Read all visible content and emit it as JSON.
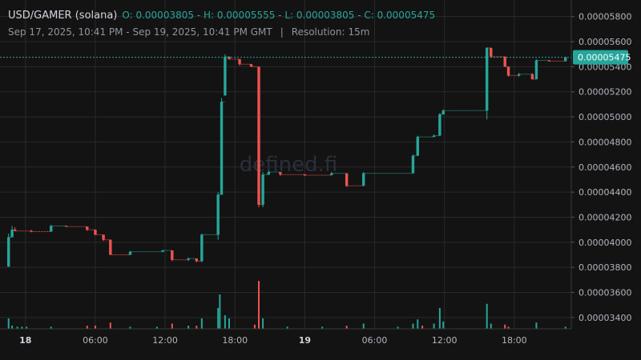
{
  "header": {
    "symbol": "USD/GAMER (solana)",
    "ohlc": "O: 0.00003805 - H: 0.00005555 - L: 0.00003805 - C: 0.00005475",
    "range": "Sep 17, 2025, 10:41 PM - Sep 19, 2025, 10:41 PM GMT",
    "separator": "|",
    "resolution_label": "Resolution:",
    "resolution": "15m"
  },
  "watermark": "defined.fi",
  "colors": {
    "background": "#131313",
    "grid": "#2a2a2a",
    "up": "#26a69a",
    "down": "#ef5350",
    "price_line": "#26a69a",
    "watermark": "#2a2f3d"
  },
  "chart_data": {
    "type": "candlestick",
    "y_axis_position": "right",
    "ylim": [
      3.31e-05,
      5.9e-05
    ],
    "y_ticks": [
      "0.00005800",
      "0.00005600",
      "0.00005400",
      "0.00005200",
      "0.00005000",
      "0.00004800",
      "0.00004600",
      "0.00004400",
      "0.00004200",
      "0.00004000",
      "0.00003800",
      "0.00003600",
      "0.00003400"
    ],
    "x_ticks": [
      {
        "t": 1.5,
        "label": "18",
        "major": true
      },
      {
        "t": 7.5,
        "label": "06:00",
        "major": false
      },
      {
        "t": 13.5,
        "label": "12:00",
        "major": false
      },
      {
        "t": 19.5,
        "label": "18:00",
        "major": false
      },
      {
        "t": 25.5,
        "label": "19",
        "major": true
      },
      {
        "t": 31.5,
        "label": "06:00",
        "major": false
      },
      {
        "t": 37.5,
        "label": "12:00",
        "major": false
      },
      {
        "t": 43.5,
        "label": "18:00",
        "major": false
      }
    ],
    "time_range_hours": [
      0,
      48.4
    ],
    "last_price": "0.00005475",
    "last_price_value": 5.475e-05,
    "candles": [
      {
        "t": 0.05,
        "o": 3.805e-05,
        "h": 4.07e-05,
        "l": 3.805e-05,
        "c": 4.04e-05
      },
      {
        "t": 0.35,
        "o": 4.04e-05,
        "h": 4.13e-05,
        "l": 4.04e-05,
        "c": 4.1e-05
      },
      {
        "t": 0.6,
        "o": 4.1e-05,
        "h": 4.12e-05,
        "l": 4.09e-05,
        "c": 4.09e-05
      },
      {
        "t": 2.0,
        "o": 4.09e-05,
        "h": 4.1e-05,
        "l": 4.08e-05,
        "c": 4.085e-05
      },
      {
        "t": 3.7,
        "o": 4.085e-05,
        "h": 4.14e-05,
        "l": 4.085e-05,
        "c": 4.13e-05
      },
      {
        "t": 5.0,
        "o": 4.13e-05,
        "h": 4.135e-05,
        "l": 4.125e-05,
        "c": 4.125e-05
      },
      {
        "t": 6.8,
        "o": 4.125e-05,
        "h": 4.125e-05,
        "l": 4.09e-05,
        "c": 4.1e-05
      },
      {
        "t": 7.5,
        "o": 4.1e-05,
        "h": 4.1e-05,
        "l": 4.06e-05,
        "c": 4.06e-05
      },
      {
        "t": 8.2,
        "o": 4.06e-05,
        "h": 4.06e-05,
        "l": 4.01e-05,
        "c": 4.02e-05
      },
      {
        "t": 8.8,
        "o": 4.02e-05,
        "h": 4.02e-05,
        "l": 3.9e-05,
        "c": 3.9e-05
      },
      {
        "t": 10.5,
        "o": 3.9e-05,
        "h": 3.93e-05,
        "l": 3.9e-05,
        "c": 3.925e-05
      },
      {
        "t": 13.3,
        "o": 3.925e-05,
        "h": 3.94e-05,
        "l": 3.92e-05,
        "c": 3.935e-05
      },
      {
        "t": 14.1,
        "o": 3.935e-05,
        "h": 3.935e-05,
        "l": 3.85e-05,
        "c": 3.86e-05
      },
      {
        "t": 15.5,
        "o": 3.86e-05,
        "h": 3.88e-05,
        "l": 3.85e-05,
        "c": 3.87e-05
      },
      {
        "t": 16.2,
        "o": 3.87e-05,
        "h": 3.87e-05,
        "l": 3.84e-05,
        "c": 3.85e-05
      },
      {
        "t": 16.65,
        "o": 3.85e-05,
        "h": 4.07e-05,
        "l": 3.84e-05,
        "c": 4.06e-05
      },
      {
        "t": 18.05,
        "o": 4.06e-05,
        "h": 4.4e-05,
        "l": 4.02e-05,
        "c": 4.38e-05
      },
      {
        "t": 18.35,
        "o": 4.38e-05,
        "h": 5.15e-05,
        "l": 4.38e-05,
        "c": 5.12e-05
      },
      {
        "t": 18.65,
        "o": 5.17e-05,
        "h": 5.5e-05,
        "l": 5.17e-05,
        "c": 5.48e-05
      },
      {
        "t": 19.0,
        "o": 5.48e-05,
        "h": 5.48e-05,
        "l": 5.46e-05,
        "c": 5.46e-05
      },
      {
        "t": 19.9,
        "o": 5.46e-05,
        "h": 5.46e-05,
        "l": 5.41e-05,
        "c": 5.42e-05
      },
      {
        "t": 20.9,
        "o": 5.42e-05,
        "h": 5.42e-05,
        "l": 5.4e-05,
        "c": 5.4e-05
      },
      {
        "t": 21.55,
        "o": 5.4e-05,
        "h": 5.4e-05,
        "l": 4.28e-05,
        "c": 4.3e-05
      },
      {
        "t": 21.9,
        "o": 4.3e-05,
        "h": 4.56e-05,
        "l": 4.28e-05,
        "c": 4.54e-05
      },
      {
        "t": 22.4,
        "o": 4.54e-05,
        "h": 4.57e-05,
        "l": 4.54e-05,
        "c": 4.56e-05
      },
      {
        "t": 23.4,
        "o": 4.56e-05,
        "h": 4.56e-05,
        "l": 4.53e-05,
        "c": 4.54e-05
      },
      {
        "t": 25.5,
        "o": 4.54e-05,
        "h": 4.545e-05,
        "l": 4.53e-05,
        "c": 4.535e-05
      },
      {
        "t": 27.8,
        "o": 4.535e-05,
        "h": 4.56e-05,
        "l": 4.535e-05,
        "c": 4.55e-05
      },
      {
        "t": 29.1,
        "o": 4.55e-05,
        "h": 4.55e-05,
        "l": 4.44e-05,
        "c": 4.45e-05
      },
      {
        "t": 30.55,
        "o": 4.45e-05,
        "h": 4.56e-05,
        "l": 4.45e-05,
        "c": 4.55e-05
      },
      {
        "t": 34.8,
        "o": 4.55e-05,
        "h": 4.7e-05,
        "l": 4.55e-05,
        "c": 4.69e-05
      },
      {
        "t": 35.2,
        "o": 4.69e-05,
        "h": 4.85e-05,
        "l": 4.69e-05,
        "c": 4.84e-05
      },
      {
        "t": 36.6,
        "o": 4.84e-05,
        "h": 4.86e-05,
        "l": 4.84e-05,
        "c": 4.85e-05
      },
      {
        "t": 37.1,
        "o": 4.85e-05,
        "h": 5.03e-05,
        "l": 4.85e-05,
        "c": 5.02e-05
      },
      {
        "t": 37.4,
        "o": 5.02e-05,
        "h": 5.06e-05,
        "l": 5.02e-05,
        "c": 5.05e-05
      },
      {
        "t": 41.15,
        "o": 5.05e-05,
        "h": 5.555e-05,
        "l": 4.98e-05,
        "c": 5.55e-05
      },
      {
        "t": 41.5,
        "o": 5.55e-05,
        "h": 5.55e-05,
        "l": 5.47e-05,
        "c": 5.48e-05
      },
      {
        "t": 42.7,
        "o": 5.48e-05,
        "h": 5.48e-05,
        "l": 5.4e-05,
        "c": 5.4e-05
      },
      {
        "t": 43.0,
        "o": 5.4e-05,
        "h": 5.4e-05,
        "l": 5.32e-05,
        "c": 5.33e-05
      },
      {
        "t": 43.9,
        "o": 5.33e-05,
        "h": 5.35e-05,
        "l": 5.32e-05,
        "c": 5.34e-05
      },
      {
        "t": 45.05,
        "o": 5.34e-05,
        "h": 5.35e-05,
        "l": 5.3e-05,
        "c": 5.3e-05
      },
      {
        "t": 45.4,
        "o": 5.3e-05,
        "h": 5.46e-05,
        "l": 5.3e-05,
        "c": 5.45e-05
      },
      {
        "t": 46.5,
        "o": 5.45e-05,
        "h": 5.455e-05,
        "l": 5.44e-05,
        "c": 5.445e-05
      },
      {
        "t": 47.9,
        "o": 5.445e-05,
        "h": 5.48e-05,
        "l": 5.44e-05,
        "c": 5.475e-05
      }
    ],
    "volume": [
      {
        "t": 0.05,
        "v": 0.1,
        "up": true
      },
      {
        "t": 0.35,
        "v": 0.03,
        "up": true
      },
      {
        "t": 0.8,
        "v": 0.02,
        "up": true
      },
      {
        "t": 1.2,
        "v": 0.02,
        "up": true
      },
      {
        "t": 1.6,
        "v": 0.02,
        "up": true
      },
      {
        "t": 3.7,
        "v": 0.02,
        "up": true
      },
      {
        "t": 6.8,
        "v": 0.03,
        "up": false
      },
      {
        "t": 7.5,
        "v": 0.03,
        "up": false
      },
      {
        "t": 8.8,
        "v": 0.06,
        "up": false
      },
      {
        "t": 10.5,
        "v": 0.02,
        "up": true
      },
      {
        "t": 12.8,
        "v": 0.02,
        "up": true
      },
      {
        "t": 14.1,
        "v": 0.05,
        "up": false
      },
      {
        "t": 15.5,
        "v": 0.03,
        "up": true
      },
      {
        "t": 16.2,
        "v": 0.03,
        "up": false
      },
      {
        "t": 16.65,
        "v": 0.1,
        "up": true
      },
      {
        "t": 18.05,
        "v": 0.2,
        "up": true
      },
      {
        "t": 18.2,
        "v": 0.33,
        "up": true
      },
      {
        "t": 18.65,
        "v": 0.13,
        "up": true
      },
      {
        "t": 19.0,
        "v": 0.1,
        "up": true
      },
      {
        "t": 21.2,
        "v": 0.04,
        "up": false
      },
      {
        "t": 21.55,
        "v": 0.46,
        "up": false
      },
      {
        "t": 21.9,
        "v": 0.1,
        "up": true
      },
      {
        "t": 24.0,
        "v": 0.02,
        "up": true
      },
      {
        "t": 27.0,
        "v": 0.02,
        "up": true
      },
      {
        "t": 29.1,
        "v": 0.03,
        "up": false
      },
      {
        "t": 30.55,
        "v": 0.05,
        "up": true
      },
      {
        "t": 33.5,
        "v": 0.02,
        "up": true
      },
      {
        "t": 34.8,
        "v": 0.05,
        "up": true
      },
      {
        "t": 35.2,
        "v": 0.09,
        "up": true
      },
      {
        "t": 35.6,
        "v": 0.03,
        "up": false
      },
      {
        "t": 36.6,
        "v": 0.05,
        "up": true
      },
      {
        "t": 37.1,
        "v": 0.2,
        "up": true
      },
      {
        "t": 37.4,
        "v": 0.07,
        "up": true
      },
      {
        "t": 41.15,
        "v": 0.24,
        "up": true
      },
      {
        "t": 41.5,
        "v": 0.05,
        "up": true
      },
      {
        "t": 42.7,
        "v": 0.04,
        "up": false
      },
      {
        "t": 43.0,
        "v": 0.02,
        "up": false
      },
      {
        "t": 45.4,
        "v": 0.06,
        "up": true
      },
      {
        "t": 47.9,
        "v": 0.02,
        "up": true
      }
    ]
  }
}
